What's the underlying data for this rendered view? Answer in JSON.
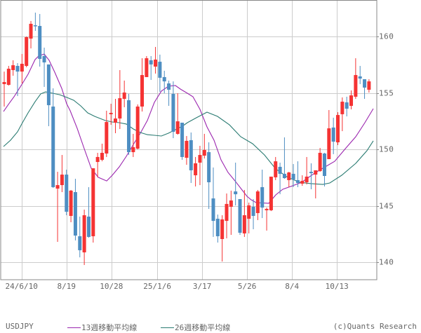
{
  "symbol": "USDJPY",
  "credit": "(c)Quants Research",
  "legend": {
    "ma13": {
      "label": "13週移動平均線",
      "color": "#9b26af"
    },
    "ma26": {
      "label": "26週移動平均線",
      "color": "#2a7b72"
    }
  },
  "colors": {
    "up": "#f53333",
    "down": "#4e8ec2",
    "grid": "#cccccc",
    "frame": "#888888"
  },
  "chart_data": {
    "type": "candlestick",
    "title": "USDJPY",
    "xlabel": "",
    "ylabel": "",
    "ylim": [
      137.8,
      163.2
    ],
    "grid": true,
    "legend_position": "bottom",
    "y_ticks": [
      160,
      155,
      150,
      145,
      140
    ],
    "x_ticks": [
      {
        "label": "24/6/10",
        "index": 3.9
      },
      {
        "label": "8/19",
        "index": 14.0
      },
      {
        "label": "10/28",
        "index": 24.1
      },
      {
        "label": "25/1/6",
        "index": 34.4
      },
      {
        "label": "3/17",
        "index": 44.5
      },
      {
        "label": "5/26",
        "index": 54.6
      },
      {
        "label": "8/4",
        "index": 64.7
      },
      {
        "label": "10/13",
        "index": 74.8
      }
    ],
    "candles": [
      [
        155.78,
        156.89,
        153.79,
        155.96
      ],
      [
        155.71,
        157.39,
        155.65,
        157.14
      ],
      [
        157.02,
        157.89,
        156.52,
        157.45
      ],
      [
        157.39,
        157.64,
        154.72,
        156.89
      ],
      [
        156.89,
        158.45,
        155.84,
        157.58
      ],
      [
        157.39,
        160.0,
        157.27,
        159.94
      ],
      [
        159.81,
        161.37,
        158.94,
        161.12
      ],
      [
        160.99,
        162.11,
        160.5,
        160.93
      ],
      [
        160.93,
        161.99,
        157.33,
        158.01
      ],
      [
        158.26,
        159.01,
        155.53,
        157.7
      ],
      [
        157.52,
        157.52,
        152.05,
        153.91
      ],
      [
        153.79,
        155.4,
        146.58,
        146.65
      ],
      [
        146.52,
        148.01,
        141.8,
        146.83
      ],
      [
        146.83,
        149.5,
        146.21,
        147.76
      ],
      [
        147.76,
        148.2,
        144.16,
        144.47
      ],
      [
        144.1,
        146.4,
        143.54,
        146.34
      ],
      [
        146.21,
        147.39,
        141.93,
        142.36
      ],
      [
        142.3,
        144.04,
        140.43,
        141.06
      ],
      [
        140.87,
        144.66,
        139.75,
        144.16
      ],
      [
        144.04,
        146.65,
        142.17,
        142.24
      ],
      [
        142.3,
        148.32,
        141.74,
        148.32
      ],
      [
        148.88,
        149.69,
        147.52,
        149.32
      ],
      [
        149.07,
        150.5,
        148.94,
        149.69
      ],
      [
        149.63,
        153.42,
        149.32,
        152.42
      ],
      [
        153.11,
        154.04,
        152.17,
        153.23
      ],
      [
        152.36,
        154.47,
        151.43,
        152.73
      ],
      [
        152.73,
        157.02,
        151.8,
        154.53
      ],
      [
        154.47,
        156.09,
        153.73,
        155.03
      ],
      [
        154.35,
        154.91,
        149.5,
        149.75
      ],
      [
        149.75,
        151.37,
        149.32,
        150.19
      ],
      [
        150.06,
        153.98,
        150.0,
        153.79
      ],
      [
        153.79,
        158.07,
        153.35,
        156.58
      ],
      [
        156.4,
        158.26,
        156.4,
        158.07
      ],
      [
        157.89,
        158.26,
        156.15,
        157.52
      ],
      [
        157.33,
        159.07,
        156.71,
        157.95
      ],
      [
        157.76,
        158.39,
        155.09,
        156.34
      ],
      [
        156.4,
        156.96,
        154.97,
        156.02
      ],
      [
        155.84,
        156.09,
        153.85,
        155.28
      ],
      [
        154.91,
        156.02,
        150.99,
        151.55
      ],
      [
        151.37,
        154.97,
        151.3,
        152.48
      ],
      [
        152.36,
        152.36,
        149.07,
        149.32
      ],
      [
        149.25,
        151.18,
        148.63,
        150.75
      ],
      [
        150.81,
        151.49,
        147.02,
        148.14
      ],
      [
        147.7,
        149.32,
        146.71,
        148.76
      ],
      [
        148.82,
        150.31,
        146.83,
        149.5
      ],
      [
        149.44,
        151.37,
        149.19,
        149.94
      ],
      [
        149.75,
        150.62,
        144.72,
        147.08
      ],
      [
        145.65,
        148.39,
        142.24,
        143.66
      ],
      [
        143.85,
        144.22,
        141.74,
        142.3
      ],
      [
        142.05,
        144.16,
        140.06,
        143.79
      ],
      [
        143.66,
        146.09,
        142.11,
        145.16
      ],
      [
        144.91,
        146.34,
        142.42,
        145.47
      ],
      [
        146.27,
        148.82,
        145.03,
        146.02
      ],
      [
        145.59,
        145.59,
        142.42,
        142.61
      ],
      [
        142.55,
        146.4,
        142.24,
        144.16
      ],
      [
        143.85,
        145.28,
        142.55,
        145.03
      ],
      [
        144.91,
        145.59,
        142.92,
        144.1
      ],
      [
        144.35,
        146.4,
        143.73,
        146.27
      ],
      [
        146.65,
        148.2,
        143.91,
        144.84
      ],
      [
        144.6,
        144.84,
        142.8,
        144.72
      ],
      [
        144.6,
        147.58,
        144.53,
        147.58
      ],
      [
        147.52,
        149.32,
        147.27,
        148.94
      ],
      [
        148.45,
        148.82,
        146.02,
        147.83
      ],
      [
        147.83,
        151.06,
        147.39,
        147.45
      ],
      [
        147.27,
        148.01,
        146.65,
        147.95
      ],
      [
        147.83,
        148.7,
        146.65,
        147.33
      ],
      [
        147.27,
        148.94,
        146.65,
        147.02
      ],
      [
        146.96,
        147.7,
        146.77,
        147.2
      ],
      [
        147.08,
        149.32,
        146.89,
        147.58
      ],
      [
        148.01,
        148.76,
        146.46,
        147.89
      ],
      [
        147.76,
        148.14,
        145.65,
        148.14
      ],
      [
        148.07,
        150.12,
        148.01,
        149.69
      ],
      [
        149.63,
        149.69,
        146.71,
        147.64
      ],
      [
        149.13,
        153.48,
        149.13,
        151.86
      ],
      [
        151.93,
        152.8,
        149.57,
        150.68
      ],
      [
        150.62,
        153.29,
        150.37,
        153.04
      ],
      [
        153.11,
        154.6,
        151.61,
        154.22
      ],
      [
        154.16,
        154.66,
        152.92,
        153.6
      ],
      [
        153.85,
        155.22,
        153.54,
        154.78
      ],
      [
        154.66,
        158.07,
        154.47,
        156.58
      ],
      [
        156.46,
        157.39,
        155.78,
        156.27
      ],
      [
        156.21,
        156.21,
        154.47,
        155.47
      ],
      [
        155.28,
        156.21,
        155.03,
        156.02
      ]
    ],
    "candle_format": [
      "open",
      "high",
      "low",
      "close"
    ],
    "series": [
      {
        "name": "13週移動平均線",
        "type": "line",
        "points": [
          [
            -0.16,
            153.35
          ],
          [
            0.95,
            153.98
          ],
          [
            2.21,
            154.66
          ],
          [
            4.1,
            155.84
          ],
          [
            5.36,
            156.65
          ],
          [
            6.94,
            157.95
          ],
          [
            7.73,
            158.26
          ],
          [
            8.99,
            158.45
          ],
          [
            10.09,
            157.89
          ],
          [
            11.36,
            156.83
          ],
          [
            12.93,
            155.4
          ],
          [
            14.04,
            154.04
          ],
          [
            14.83,
            153.42
          ],
          [
            16.4,
            151.86
          ],
          [
            17.98,
            150.06
          ],
          [
            19.56,
            148.32
          ],
          [
            21.14,
            147.52
          ],
          [
            23.03,
            147.2
          ],
          [
            24.29,
            147.7
          ],
          [
            25.87,
            148.45
          ],
          [
            27.44,
            149.38
          ],
          [
            29.02,
            150.43
          ],
          [
            30.6,
            151.43
          ],
          [
            32.18,
            152.55
          ],
          [
            33.75,
            154.16
          ],
          [
            35.33,
            155.16
          ],
          [
            36.91,
            155.59
          ],
          [
            38.49,
            155.65
          ],
          [
            39.59,
            155.34
          ],
          [
            41.17,
            154.97
          ],
          [
            42.43,
            154.66
          ],
          [
            44.01,
            153.54
          ],
          [
            45.58,
            151.99
          ],
          [
            47.16,
            150.81
          ],
          [
            48.74,
            149.07
          ],
          [
            50.32,
            147.95
          ],
          [
            51.89,
            147.2
          ],
          [
            53.47,
            146.4
          ],
          [
            54.57,
            145.84
          ],
          [
            55.52,
            145.53
          ],
          [
            56.62,
            145.28
          ],
          [
            59.46,
            145.22
          ],
          [
            61.04,
            145.96
          ],
          [
            62.62,
            146.46
          ],
          [
            64.83,
            146.77
          ],
          [
            66.88,
            147.08
          ],
          [
            69.56,
            147.83
          ],
          [
            71.61,
            148.32
          ],
          [
            74.29,
            148.94
          ],
          [
            76.81,
            150.12
          ],
          [
            79.02,
            151.12
          ],
          [
            81.07,
            152.36
          ],
          [
            82.97,
            153.6
          ]
        ]
      },
      {
        "name": "26週移動平均線",
        "type": "line",
        "points": [
          [
            -0.16,
            150.25
          ],
          [
            1.42,
            150.81
          ],
          [
            3.0,
            151.55
          ],
          [
            4.1,
            152.36
          ],
          [
            5.36,
            153.23
          ],
          [
            6.94,
            154.22
          ],
          [
            8.2,
            154.91
          ],
          [
            9.31,
            155.09
          ],
          [
            10.88,
            154.97
          ],
          [
            12.46,
            154.84
          ],
          [
            14.04,
            154.6
          ],
          [
            15.62,
            154.35
          ],
          [
            17.19,
            153.85
          ],
          [
            18.77,
            153.23
          ],
          [
            20.35,
            152.92
          ],
          [
            22.71,
            152.55
          ],
          [
            24.29,
            152.42
          ],
          [
            25.87,
            152.36
          ],
          [
            27.44,
            152.24
          ],
          [
            29.02,
            151.8
          ],
          [
            30.6,
            151.49
          ],
          [
            32.18,
            151.3
          ],
          [
            33.75,
            151.24
          ],
          [
            35.33,
            151.18
          ],
          [
            36.91,
            151.43
          ],
          [
            38.49,
            151.74
          ],
          [
            40.06,
            152.05
          ],
          [
            41.17,
            152.36
          ],
          [
            43.22,
            152.8
          ],
          [
            45.58,
            153.29
          ],
          [
            47.95,
            152.92
          ],
          [
            50.63,
            152.17
          ],
          [
            53.15,
            151.12
          ],
          [
            55.84,
            150.5
          ],
          [
            58.52,
            149.5
          ],
          [
            61.04,
            148.26
          ],
          [
            63.72,
            147.52
          ],
          [
            66.4,
            147.08
          ],
          [
            68.93,
            146.96
          ],
          [
            71.61,
            146.89
          ],
          [
            73.19,
            147.02
          ],
          [
            75.87,
            147.7
          ],
          [
            79.02,
            148.76
          ],
          [
            81.55,
            149.88
          ],
          [
            82.97,
            150.75
          ]
        ]
      }
    ]
  }
}
